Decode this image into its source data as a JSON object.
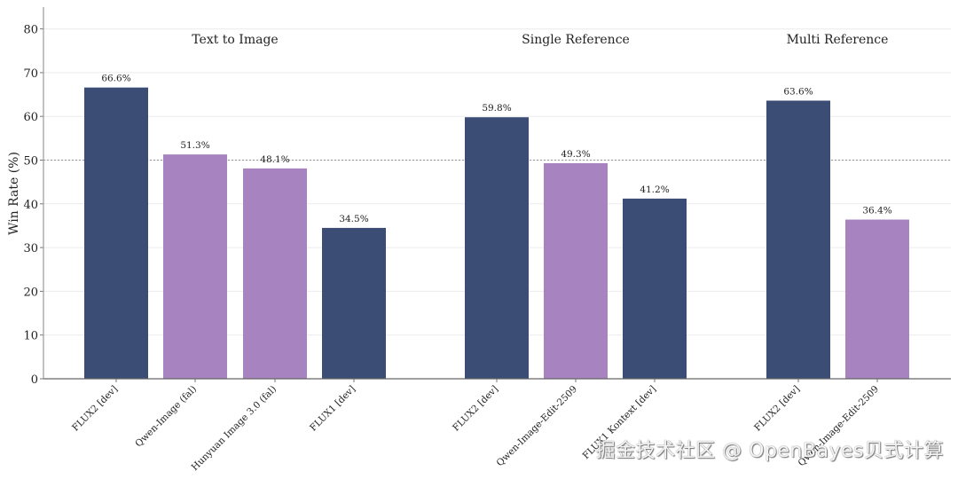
{
  "chart_data": {
    "type": "bar",
    "title": "",
    "xlabel": "",
    "ylabel": "Win Rate (%)",
    "ylim": [
      0,
      85
    ],
    "yticks": [
      0,
      10,
      20,
      30,
      40,
      50,
      60,
      70,
      80
    ],
    "grid": true,
    "reference_line": 50,
    "colors": {
      "flux": "#3b4d75",
      "other": "#a784bf"
    },
    "groups": [
      {
        "title": "Text to Image",
        "bars": [
          {
            "label": "FLUX2 [dev]",
            "value": 66.6,
            "value_label": "66.6%",
            "kind": "flux"
          },
          {
            "label": "Qwen-Image (fal)",
            "value": 51.3,
            "value_label": "51.3%",
            "kind": "other"
          },
          {
            "label": "Hunyuan Image 3.0 (fal)",
            "value": 48.1,
            "value_label": "48.1%",
            "kind": "other"
          },
          {
            "label": "FLUX1 [dev]",
            "value": 34.5,
            "value_label": "34.5%",
            "kind": "flux"
          }
        ]
      },
      {
        "title": "Single Reference",
        "bars": [
          {
            "label": "FLUX2 [dev]",
            "value": 59.8,
            "value_label": "59.8%",
            "kind": "flux"
          },
          {
            "label": "Qwen-Image-Edit-2509",
            "value": 49.3,
            "value_label": "49.3%",
            "kind": "other"
          },
          {
            "label": "FLUX1 Kontext [dev]",
            "value": 41.2,
            "value_label": "41.2%",
            "kind": "flux"
          }
        ]
      },
      {
        "title": "Multi Reference",
        "bars": [
          {
            "label": "FLUX2 [dev]",
            "value": 63.6,
            "value_label": "63.6%",
            "kind": "flux"
          },
          {
            "label": "Qwen-Image-Edit-2509",
            "value": 36.4,
            "value_label": "36.4%",
            "kind": "other"
          }
        ]
      }
    ]
  },
  "watermark": "掘金技术社区 @ OpenBayes贝式计算"
}
